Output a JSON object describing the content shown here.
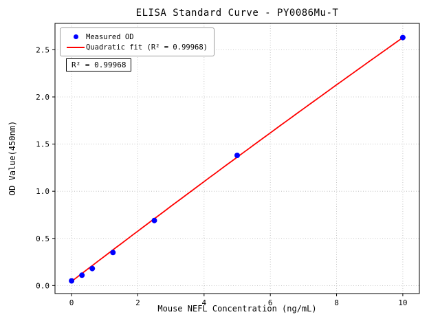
{
  "chart_data": {
    "type": "scatter",
    "title": "ELISA Standard Curve - PY0086Mu-T",
    "xlabel": "Mouse NEFL Concentration (ng/mL)",
    "ylabel": "OD Value(450nm)",
    "xlim": [
      -0.5,
      10.5
    ],
    "ylim": [
      -0.085,
      2.78
    ],
    "xticks": [
      0,
      2,
      4,
      6,
      8,
      10
    ],
    "xtick_labels": [
      "0",
      "2",
      "4",
      "6",
      "8",
      "10"
    ],
    "yticks": [
      0,
      0.5,
      1.0,
      1.5,
      2.0,
      2.5
    ],
    "ytick_labels": [
      "0.0",
      "0.5",
      "1.0",
      "1.5",
      "2.0",
      "2.5"
    ],
    "grid": true,
    "grid_color": "#b8b8b8",
    "legend_position": "upper left",
    "series": [
      {
        "name": "Measured OD",
        "type": "scatter",
        "color": "#0000ff",
        "points": [
          {
            "x": 0,
            "y": 0.05
          },
          {
            "x": 0.313,
            "y": 0.11
          },
          {
            "x": 0.625,
            "y": 0.18
          },
          {
            "x": 1.25,
            "y": 0.35
          },
          {
            "x": 2.5,
            "y": 0.69
          },
          {
            "x": 5,
            "y": 1.38
          },
          {
            "x": 10,
            "y": 2.63
          }
        ]
      },
      {
        "name": "Quadratic fit (R² = 0.99968)",
        "type": "line",
        "color": "#ff0000",
        "fit": {
          "kind": "quadratic",
          "a": -0.001,
          "b": 0.2685,
          "c": 0.044,
          "x_range": [
            0,
            10
          ]
        }
      }
    ],
    "annotation": "R² = 0.99968",
    "r_squared": 0.99968
  }
}
